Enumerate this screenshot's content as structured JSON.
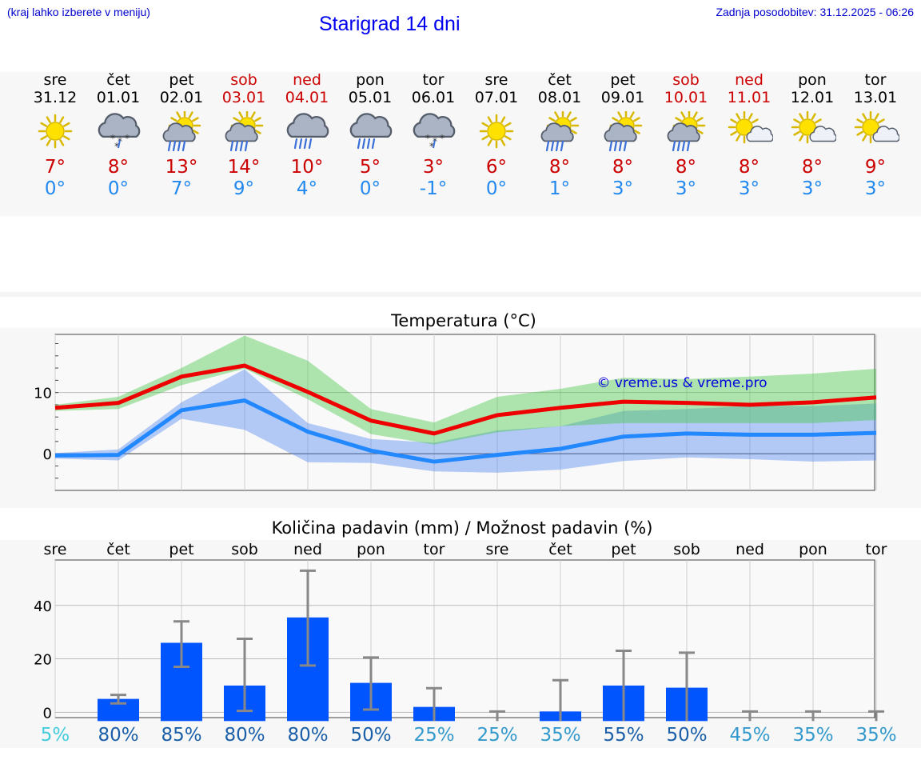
{
  "header": {
    "menu_hint": "(kraj lahko izberete v meniju)",
    "title": "Starigrad 14 dni",
    "updated": "Zadnja posodobitev: 31.12.2025 - 06:26"
  },
  "colors": {
    "max": "#cc0000",
    "min": "#2288ee",
    "accent": "#0000ee",
    "bar": "#0055ff",
    "weekend": "#cc0000"
  },
  "days": [
    {
      "name": "sre",
      "date": "31.12",
      "icon": "sun-icon",
      "tmax": "7°",
      "tmin": "0°",
      "weekend": false
    },
    {
      "name": "čet",
      "date": "01.01",
      "icon": "cloud-snow-icon",
      "tmax": "8°",
      "tmin": "0°",
      "weekend": false
    },
    {
      "name": "pet",
      "date": "02.01",
      "icon": "sun-cloud-rain-icon",
      "tmax": "13°",
      "tmin": "7°",
      "weekend": false
    },
    {
      "name": "sob",
      "date": "03.01",
      "icon": "sun-cloud-rain-icon",
      "tmax": "14°",
      "tmin": "9°",
      "weekend": true
    },
    {
      "name": "ned",
      "date": "04.01",
      "icon": "cloud-rain-icon",
      "tmax": "10°",
      "tmin": "4°",
      "weekend": true
    },
    {
      "name": "pon",
      "date": "05.01",
      "icon": "cloud-rain-icon",
      "tmax": "5°",
      "tmin": "0°",
      "weekend": false
    },
    {
      "name": "tor",
      "date": "06.01",
      "icon": "cloud-snow-icon",
      "tmax": "3°",
      "tmin": "-1°",
      "weekend": false
    },
    {
      "name": "sre",
      "date": "07.01",
      "icon": "sun-icon",
      "tmax": "6°",
      "tmin": "0°",
      "weekend": false
    },
    {
      "name": "čet",
      "date": "08.01",
      "icon": "sun-cloud-rain-icon",
      "tmax": "8°",
      "tmin": "1°",
      "weekend": false
    },
    {
      "name": "pet",
      "date": "09.01",
      "icon": "sun-cloud-rain-icon",
      "tmax": "8°",
      "tmin": "3°",
      "weekend": false
    },
    {
      "name": "sob",
      "date": "10.01",
      "icon": "sun-cloud-rain-icon",
      "tmax": "8°",
      "tmin": "3°",
      "weekend": true
    },
    {
      "name": "ned",
      "date": "11.01",
      "icon": "sun-cloud-icon",
      "tmax": "8°",
      "tmin": "3°",
      "weekend": true
    },
    {
      "name": "pon",
      "date": "12.01",
      "icon": "sun-cloud-icon",
      "tmax": "8°",
      "tmin": "3°",
      "weekend": false
    },
    {
      "name": "tor",
      "date": "13.01",
      "icon": "sun-cloud-icon",
      "tmax": "9°",
      "tmin": "3°",
      "weekend": false
    }
  ],
  "chart_data": [
    {
      "type": "line",
      "title": "Temperatura (°C)",
      "watermark": "© vreme.us & vreme.pro",
      "ylim": [
        -6,
        19.5
      ],
      "yticks": [
        0,
        10
      ],
      "series": [
        {
          "name": "max",
          "color": "#ee0000",
          "values": [
            7.5,
            8.3,
            12.6,
            14.4,
            10.1,
            5.4,
            3.3,
            6.3,
            7.5,
            8.5,
            8.3,
            8.0,
            8.4,
            9.2
          ]
        },
        {
          "name": "min",
          "color": "#2288ff",
          "values": [
            -0.3,
            -0.2,
            7.1,
            8.7,
            3.6,
            0.5,
            -1.3,
            -0.2,
            0.8,
            2.8,
            3.3,
            3.1,
            3.1,
            3.4
          ]
        }
      ],
      "max_band": {
        "low": [
          7.0,
          7.3,
          11.2,
          13.9,
          8.9,
          3.2,
          1.5,
          3.5,
          4.5,
          5.0,
          5.0,
          5.0,
          5.0,
          5.5
        ],
        "high": [
          8.0,
          9.3,
          14.0,
          19.3,
          15.2,
          7.3,
          5.1,
          9.3,
          10.6,
          12.4,
          12.2,
          12.6,
          13.1,
          13.9
        ]
      },
      "min_band": {
        "low": [
          -0.8,
          -1.1,
          5.7,
          3.9,
          -1.4,
          -1.5,
          -2.9,
          -3.1,
          -2.6,
          -1.2,
          -0.6,
          -0.9,
          -1.3,
          -1.1
        ],
        "high": [
          0.1,
          0.7,
          8.4,
          13.8,
          5.0,
          2.4,
          1.8,
          3.8,
          4.5,
          7.0,
          7.3,
          7.8,
          7.8,
          8.2
        ]
      }
    },
    {
      "type": "bar",
      "title": "Količina padavin (mm) / Možnost padavin (%)",
      "categories": [
        "sre",
        "čet",
        "pet",
        "sob",
        "ned",
        "pon",
        "tor",
        "sre",
        "čet",
        "pet",
        "sob",
        "ned",
        "pon",
        "tor"
      ],
      "ylim": [
        -2,
        57
      ],
      "yticks": [
        0,
        20,
        40
      ],
      "values": [
        0,
        5,
        26,
        10,
        35.5,
        11,
        2,
        0,
        0.3,
        10,
        9.2,
        0,
        0,
        0
      ],
      "err_low": [
        0,
        3.3,
        17,
        0.5,
        17.5,
        1,
        0,
        0,
        0,
        0,
        0,
        0,
        0,
        0
      ],
      "err_high": [
        0,
        6.5,
        34,
        27.5,
        53,
        20.5,
        9,
        0.3,
        12,
        23,
        22.3,
        0.3,
        0.3,
        0.3
      ],
      "chance": [
        "5%",
        "80%",
        "85%",
        "80%",
        "80%",
        "50%",
        "25%",
        "25%",
        "35%",
        "55%",
        "50%",
        "45%",
        "35%",
        "35%"
      ],
      "chance_values": [
        5,
        80,
        85,
        80,
        80,
        50,
        25,
        25,
        35,
        55,
        50,
        45,
        35,
        35
      ]
    }
  ]
}
